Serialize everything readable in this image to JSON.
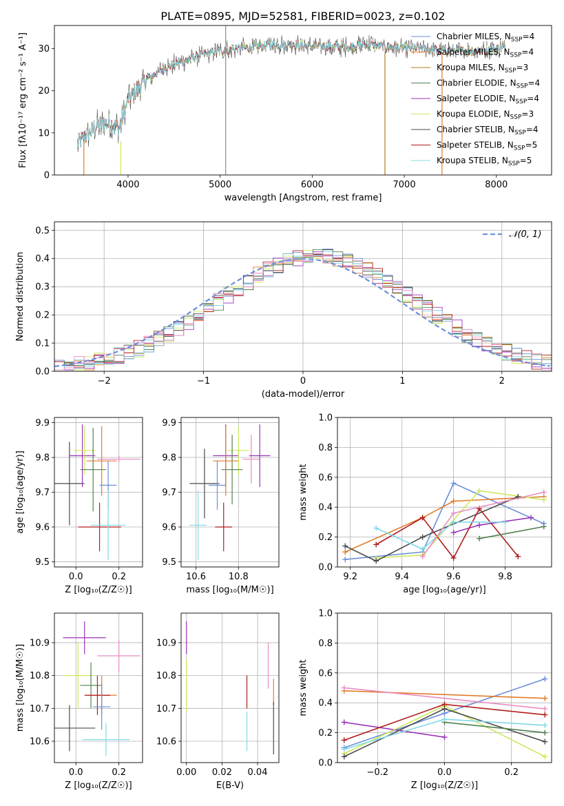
{
  "figure_title": "PLATE=0895, MJD=52581, FIBERID=0023, z=0.102",
  "colors": {
    "Chabrier MILES": "#6a8fd8",
    "Salpeter MILES": "#e07b28",
    "Kroupa MILES": "#b07d18",
    "Chabrier ELODIE": "#4f7f4f",
    "Salpeter ELODIE": "#9b32b8",
    "Kroupa ELODIE": "#cce85a",
    "Chabrier STELIB": "#4a4a4a",
    "Salpeter STELIB": "#b01c1c",
    "Kroupa STELIB": "#80d8e6",
    "pink": "#e88bc0",
    "gray": "#8a8a8a",
    "grid": "#b0b0b0"
  },
  "chart_data": [
    {
      "id": "spectrum",
      "type": "line",
      "xlabel": "wavelength [Angstrom, rest frame]",
      "ylabel": "Flux [fλ10⁻¹⁷ erg cm⁻² s⁻¹ A⁻¹]",
      "xlim": [
        3200,
        8600
      ],
      "ylim": [
        0,
        35.5
      ],
      "xticks": [
        4000,
        5000,
        6000,
        7000,
        8000
      ],
      "yticks": [
        0,
        10,
        20,
        30
      ],
      "legend_position": "top-right",
      "legend": [
        {
          "label": "Chabrier MILES, N",
          "sub": "SSP",
          "suffix": "=4",
          "color": "#6a8fd8"
        },
        {
          "label": "Salpeter MILES, N",
          "sub": "SSP",
          "suffix": "=4",
          "color": "#e07b28"
        },
        {
          "label": "Kroupa MILES, N",
          "sub": "SSP",
          "suffix": "=3",
          "color": "#b07d18"
        },
        {
          "label": "Chabrier ELODIE, N",
          "sub": "SSP",
          "suffix": "=4",
          "color": "#4f7f4f"
        },
        {
          "label": "Salpeter ELODIE, N",
          "sub": "SSP",
          "suffix": "=4",
          "color": "#9b32b8"
        },
        {
          "label": "Kroupa ELODIE, N",
          "sub": "SSP",
          "suffix": "=3",
          "color": "#cce85a"
        },
        {
          "label": "Chabrier STELIB, N",
          "sub": "SSP",
          "suffix": "=4",
          "color": "#4a4a4a"
        },
        {
          "label": "Salpeter STELIB, N",
          "sub": "SSP",
          "suffix": "=5",
          "color": "#b01c1c"
        },
        {
          "label": "Kroupa STELIB, N",
          "sub": "SSP",
          "suffix": "=5",
          "color": "#80d8e6"
        }
      ],
      "envelope": {
        "x": [
          3450,
          3550,
          3650,
          3800,
          3900,
          3950,
          4000,
          4100,
          4200,
          4300,
          4400,
          4600,
          4800,
          5000,
          5200,
          5400,
          5600,
          5800,
          6000,
          6200,
          6400,
          6600,
          6800,
          7000,
          7200,
          7400,
          7600,
          7800,
          8000,
          8100
        ],
        "y": [
          7.5,
          9.5,
          11.5,
          12.5,
          11.0,
          14.0,
          18.0,
          20.5,
          22.5,
          24.0,
          25.5,
          27.0,
          28.5,
          29.5,
          30.0,
          30.5,
          31.0,
          31.0,
          30.5,
          30.5,
          30.5,
          31.0,
          30.5,
          30.0,
          30.0,
          29.5,
          29.5,
          29.5,
          30.0,
          30.5
        ]
      },
      "spikes": [
        {
          "x": 3520,
          "y0": 0,
          "y1": 8,
          "color": "#e07b28"
        },
        {
          "x": 3920,
          "y0": 0,
          "y1": 8,
          "color": "#cce85a"
        },
        {
          "x": 5060,
          "y0": 0,
          "y1": 35.5,
          "color": "#8a8a8a"
        },
        {
          "x": 6790,
          "y0": 0,
          "y1": 29,
          "color": "#b07d18"
        },
        {
          "x": 7410,
          "y0": 0,
          "y1": 29,
          "color": "#e07b28"
        }
      ]
    },
    {
      "id": "residuals",
      "type": "line",
      "xlabel": "(data-model)/error",
      "ylabel": "Normed distribution",
      "xlim": [
        -2.5,
        2.5
      ],
      "ylim": [
        0,
        0.53
      ],
      "xticks": [
        -2,
        -1,
        0,
        1,
        2
      ],
      "yticks": [
        0.0,
        0.1,
        0.2,
        0.3,
        0.4,
        0.5
      ],
      "legend_position": "top-right",
      "legend": [
        {
          "label": "𝒩(0, 1)",
          "color": "#6a8fd8",
          "dashed": true
        }
      ],
      "gaussian": {
        "mean": 0,
        "sigma": 1
      },
      "histogram_bin_width": 0.1
    },
    {
      "id": "age-vs-Z",
      "type": "scatter",
      "xlabel": "Z [log₁₀(Z/Z☉)]",
      "ylabel": "age  [log₁₀(age/yr)]",
      "xlim": [
        -0.1,
        0.31
      ],
      "ylim": [
        9.485,
        9.915
      ],
      "xticks": [
        0.0,
        0.2
      ],
      "yticks": [
        9.5,
        9.6,
        9.7,
        9.8,
        9.9
      ],
      "points": [
        {
          "x": -0.03,
          "y": 9.725,
          "dx": 0.07,
          "dy": 0.12,
          "color": "#4a4a4a"
        },
        {
          "x": 0.03,
          "y": 9.805,
          "dx": 0.06,
          "dy": 0.09,
          "color": "#9b32b8"
        },
        {
          "x": 0.04,
          "y": 9.82,
          "dx": 0.05,
          "dy": 0.07,
          "color": "#cce85a"
        },
        {
          "x": 0.08,
          "y": 9.765,
          "dx": 0.06,
          "dy": 0.12,
          "color": "#4f7f4f"
        },
        {
          "x": 0.12,
          "y": 9.79,
          "dx": 0.07,
          "dy": 0.1,
          "color": "#e07b28"
        },
        {
          "x": 0.11,
          "y": 9.6,
          "dx": 0.1,
          "dy": 0.07,
          "color": "#b01c1c"
        },
        {
          "x": 0.15,
          "y": 9.72,
          "dx": 0.04,
          "dy": 0.07,
          "color": "#6a8fd8"
        },
        {
          "x": 0.15,
          "y": 9.605,
          "dx": 0.08,
          "dy": 0.1,
          "color": "#80d8e6"
        },
        {
          "x": 0.2,
          "y": 9.795,
          "dx": 0.1,
          "dy": 0.01,
          "color": "#e88bc0"
        }
      ]
    },
    {
      "id": "age-vs-mass",
      "type": "scatter",
      "xlabel": "mass [log₁₀(M/M☉)]",
      "ylabel": "",
      "xlim": [
        10.53,
        10.99
      ],
      "ylim": [
        9.485,
        9.915
      ],
      "xticks": [
        10.6,
        10.8
      ],
      "yticks": [
        9.5,
        9.6,
        9.7,
        9.8,
        9.9
      ],
      "points": [
        {
          "x": 10.64,
          "y": 9.725,
          "dx": 0.07,
          "dy": 0.1,
          "color": "#4a4a4a"
        },
        {
          "x": 10.74,
          "y": 9.805,
          "dx": 0.06,
          "dy": 0.09,
          "color": "#9b32b8"
        },
        {
          "x": 10.8,
          "y": 9.82,
          "dx": 0.05,
          "dy": 0.07,
          "color": "#cce85a"
        },
        {
          "x": 10.77,
          "y": 9.765,
          "dx": 0.05,
          "dy": 0.1,
          "color": "#4f7f4f"
        },
        {
          "x": 10.74,
          "y": 9.79,
          "dx": 0.06,
          "dy": 0.1,
          "color": "#e07b28"
        },
        {
          "x": 10.73,
          "y": 9.6,
          "dx": 0.04,
          "dy": 0.07,
          "color": "#b01c1c"
        },
        {
          "x": 10.7,
          "y": 9.72,
          "dx": 0.04,
          "dy": 0.07,
          "color": "#6a8fd8"
        },
        {
          "x": 10.61,
          "y": 9.605,
          "dx": 0.04,
          "dy": 0.1,
          "color": "#80d8e6"
        },
        {
          "x": 10.86,
          "y": 9.795,
          "dx": 0.04,
          "dy": 0.07,
          "color": "#e88bc0"
        },
        {
          "x": 10.9,
          "y": 9.805,
          "dx": 0.05,
          "dy": 0.09,
          "color": "#9b32b8"
        }
      ]
    },
    {
      "id": "weight-vs-age",
      "type": "line",
      "xlabel": "age  [log₁₀(age/yr)]",
      "ylabel": "mass weight",
      "xlim": [
        9.15,
        9.98
      ],
      "ylim": [
        0,
        1.0
      ],
      "xticks": [
        9.2,
        9.4,
        9.6,
        9.8
      ],
      "yticks": [
        0.0,
        0.2,
        0.4,
        0.6,
        0.8,
        1.0
      ],
      "series": [
        {
          "color": "#6a8fd8",
          "x": [
            9.18,
            9.48,
            9.6,
            9.95
          ],
          "y": [
            0.05,
            0.1,
            0.56,
            0.29
          ]
        },
        {
          "color": "#e07b28",
          "x": [
            9.18,
            9.48,
            9.6,
            9.95
          ],
          "y": [
            0.1,
            0.33,
            0.44,
            0.47
          ]
        },
        {
          "color": "#9b32b8",
          "x": [
            9.6,
            9.7,
            9.9
          ],
          "y": [
            0.23,
            0.28,
            0.33
          ]
        },
        {
          "color": "#cce85a",
          "x": [
            9.3,
            9.48,
            9.7,
            9.95
          ],
          "y": [
            0.06,
            0.08,
            0.51,
            0.45
          ]
        },
        {
          "color": "#4a4a4a",
          "x": [
            9.18,
            9.3,
            9.48,
            9.85
          ],
          "y": [
            0.14,
            0.04,
            0.2,
            0.47
          ]
        },
        {
          "color": "#b01c1c",
          "x": [
            9.3,
            9.48,
            9.6,
            9.7,
            9.85
          ],
          "y": [
            0.15,
            0.33,
            0.06,
            0.39,
            0.07
          ]
        },
        {
          "color": "#4f7f4f",
          "x": [
            9.7,
            9.95
          ],
          "y": [
            0.19,
            0.27
          ]
        },
        {
          "color": "#80d8e6",
          "x": [
            9.3,
            9.48,
            9.6,
            9.8
          ],
          "y": [
            0.26,
            0.12,
            0.3,
            0.3
          ]
        },
        {
          "color": "#e88bc0",
          "x": [
            9.48,
            9.6,
            9.95
          ],
          "y": [
            0.07,
            0.36,
            0.5
          ]
        }
      ]
    },
    {
      "id": "mass-vs-Z",
      "type": "scatter",
      "xlabel": "Z [log₁₀(Z/Z☉)]",
      "ylabel": "mass [log₁₀(M/M☉)]",
      "xlim": [
        -0.1,
        0.31
      ],
      "ylim": [
        10.535,
        10.99
      ],
      "xticks": [
        0.0,
        0.2
      ],
      "yticks": [
        10.6,
        10.7,
        10.8,
        10.9
      ],
      "points": [
        {
          "x": -0.03,
          "y": 10.64,
          "dx": 0.12,
          "dy": 0.07,
          "color": "#4a4a4a"
        },
        {
          "x": 0.04,
          "y": 10.915,
          "dx": 0.1,
          "dy": 0.05,
          "color": "#9b32b8"
        },
        {
          "x": 0.01,
          "y": 10.8,
          "dx": 0.07,
          "dy": 0.1,
          "color": "#cce85a"
        },
        {
          "x": 0.07,
          "y": 10.77,
          "dx": 0.05,
          "dy": 0.07,
          "color": "#4f7f4f"
        },
        {
          "x": 0.12,
          "y": 10.74,
          "dx": 0.07,
          "dy": 0.06,
          "color": "#e07b28"
        },
        {
          "x": 0.1,
          "y": 10.74,
          "dx": 0.06,
          "dy": 0.06,
          "color": "#b01c1c"
        },
        {
          "x": 0.12,
          "y": 10.705,
          "dx": 0.04,
          "dy": 0.07,
          "color": "#6a8fd8"
        },
        {
          "x": 0.14,
          "y": 10.605,
          "dx": 0.11,
          "dy": 0.05,
          "color": "#80d8e6"
        },
        {
          "x": 0.2,
          "y": 10.86,
          "dx": 0.1,
          "dy": 0.05,
          "color": "#e88bc0"
        }
      ]
    },
    {
      "id": "mass-vs-ebv",
      "type": "scatter",
      "xlabel": "E(B-V)",
      "ylabel": "",
      "xlim": [
        -0.003,
        0.052
      ],
      "ylim": [
        10.535,
        10.99
      ],
      "xticks": [
        0.0,
        0.02,
        0.04
      ],
      "yticks": [
        10.6,
        10.7,
        10.8,
        10.9
      ],
      "points": [
        {
          "x": 0.0,
          "y": 10.915,
          "dx": 0,
          "dy": 0.05,
          "color": "#9b32b8"
        },
        {
          "x": 0.0,
          "y": 10.77,
          "dx": 0,
          "dy": 0.08,
          "color": "#cce85a"
        },
        {
          "x": 0.034,
          "y": 10.75,
          "dx": 0,
          "dy": 0.05,
          "color": "#b01c1c"
        },
        {
          "x": 0.034,
          "y": 10.63,
          "dx": 0,
          "dy": 0.06,
          "color": "#80d8e6"
        },
        {
          "x": 0.046,
          "y": 10.83,
          "dx": 0,
          "dy": 0.07,
          "color": "#e88bc0"
        },
        {
          "x": 0.049,
          "y": 10.75,
          "dx": 0,
          "dy": 0.04,
          "color": "#e07b28"
        },
        {
          "x": 0.049,
          "y": 10.64,
          "dx": 0,
          "dy": 0.08,
          "color": "#4a4a4a"
        }
      ]
    },
    {
      "id": "weight-vs-Z",
      "type": "line",
      "xlabel": "Z [log₁₀(Z/Z☉)]",
      "ylabel": "mass weight",
      "xlim": [
        -0.32,
        0.32
      ],
      "ylim": [
        0,
        1.0
      ],
      "xticks": [
        -0.2,
        0.0,
        0.2
      ],
      "yticks": [
        0.0,
        0.2,
        0.4,
        0.6,
        0.8,
        1.0
      ],
      "series": [
        {
          "color": "#6a8fd8",
          "x": [
            -0.3,
            0.0,
            0.3
          ],
          "y": [
            0.1,
            0.33,
            0.56
          ]
        },
        {
          "color": "#e07b28",
          "x": [
            -0.3,
            0.3
          ],
          "y": [
            0.48,
            0.43
          ]
        },
        {
          "color": "#e88bc0",
          "x": [
            -0.3,
            0.3
          ],
          "y": [
            0.5,
            0.36
          ]
        },
        {
          "color": "#9b32b8",
          "x": [
            -0.3,
            0.0
          ],
          "y": [
            0.27,
            0.17
          ]
        },
        {
          "color": "#cce85a",
          "x": [
            -0.3,
            0.0,
            0.3
          ],
          "y": [
            0.06,
            0.38,
            0.04
          ]
        },
        {
          "color": "#4a4a4a",
          "x": [
            -0.3,
            0.0,
            0.3
          ],
          "y": [
            0.04,
            0.36,
            0.14
          ]
        },
        {
          "color": "#b01c1c",
          "x": [
            -0.3,
            0.0,
            0.3
          ],
          "y": [
            0.15,
            0.39,
            0.32
          ]
        },
        {
          "color": "#4f7f4f",
          "x": [
            0.0,
            0.3
          ],
          "y": [
            0.27,
            0.2
          ]
        },
        {
          "color": "#80d8e6",
          "x": [
            -0.3,
            0.0,
            0.3
          ],
          "y": [
            0.09,
            0.29,
            0.25
          ]
        }
      ]
    }
  ]
}
